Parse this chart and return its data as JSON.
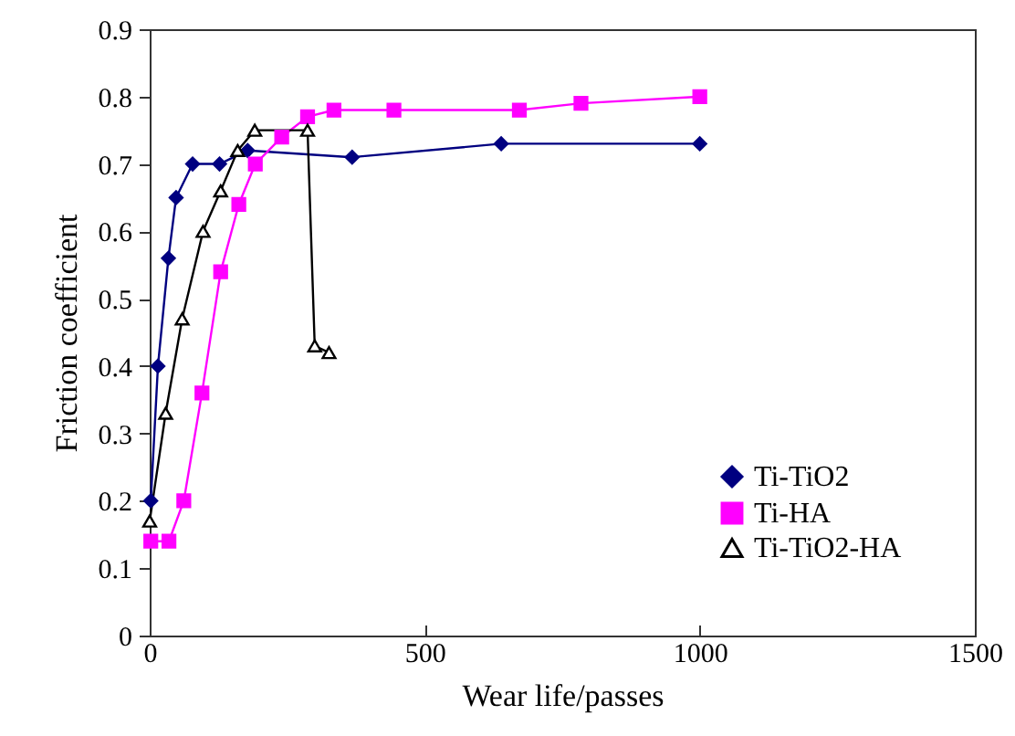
{
  "chart_data": {
    "type": "line",
    "xlabel": "Wear life/passes",
    "ylabel": "Friction coefficient",
    "xlim": [
      0,
      1500
    ],
    "xticks": [
      0,
      500,
      1000,
      1500
    ],
    "ylim": [
      0,
      0.9
    ],
    "yticks": [
      0,
      0.1,
      0.2,
      0.3,
      0.4,
      0.5,
      0.6,
      0.7,
      0.8,
      0.9
    ],
    "grid": false,
    "legend": "bottom right",
    "line_style": "solid",
    "series": [
      {
        "name": "Ti-TiO2",
        "color": "#000080",
        "marker": "diamond",
        "x": [
          2,
          15,
          34,
          48,
          78,
          127,
          178,
          368,
          639,
          1000
        ],
        "values": [
          0.2,
          0.4,
          0.56,
          0.65,
          0.7,
          0.7,
          0.72,
          0.71,
          0.73,
          0.73
        ]
      },
      {
        "name": "Ti-HA",
        "color": "#ff00ff",
        "marker": "square",
        "x": [
          2,
          35,
          62,
          95,
          129,
          162,
          192,
          240,
          287,
          335,
          444,
          672,
          784,
          1000
        ],
        "values": [
          0.14,
          0.14,
          0.2,
          0.36,
          0.54,
          0.64,
          0.7,
          0.74,
          0.77,
          0.78,
          0.78,
          0.78,
          0.79,
          0.8
        ]
      },
      {
        "name": "Ti-TiO2-HA",
        "color": "#000000",
        "marker": "triangle",
        "x": [
          0,
          29,
          59,
          97,
          129,
          160,
          191,
          287,
          300,
          326
        ],
        "values": [
          0.17,
          0.33,
          0.47,
          0.6,
          0.66,
          0.72,
          0.75,
          0.75,
          0.43,
          0.42
        ]
      }
    ]
  }
}
